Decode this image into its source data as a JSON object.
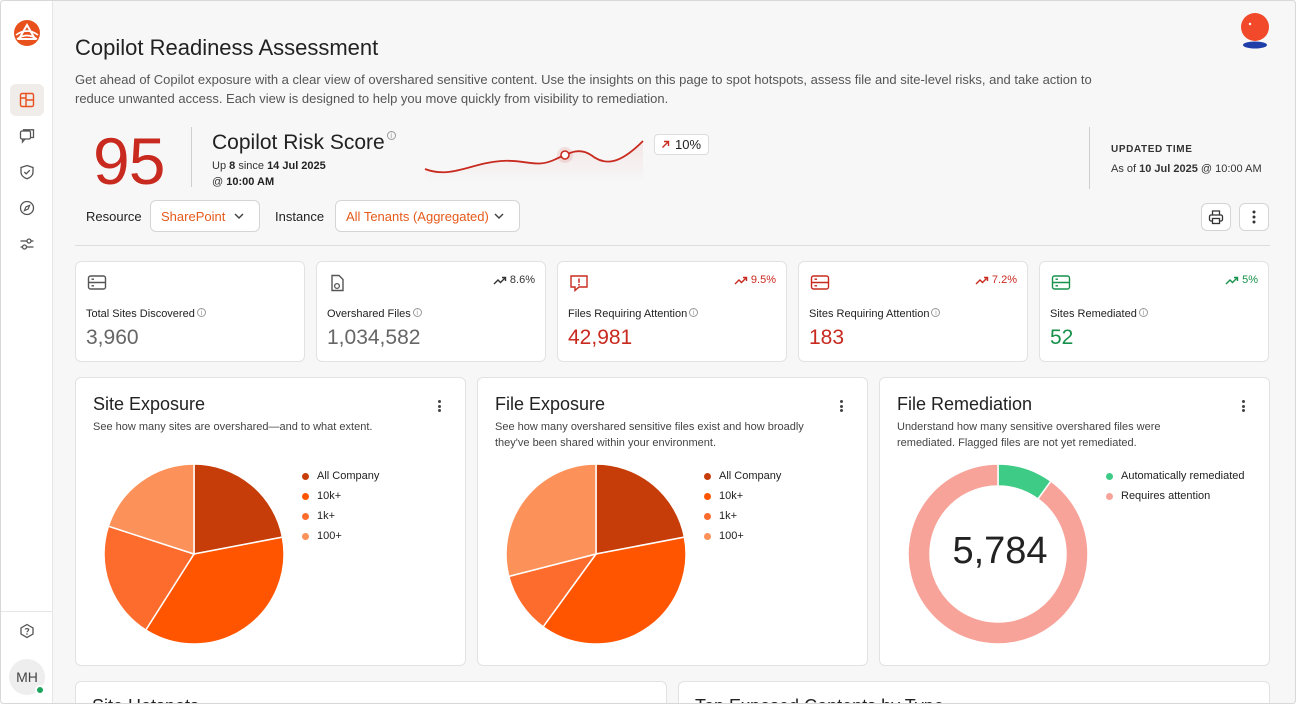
{
  "page": {
    "title": "Copilot Readiness Assessment",
    "description": "Get ahead of Copilot exposure with a clear view of overshared sensitive content. Use the insights on this page to spot hotspots, assess file and site-level risks, and take action to reduce unwanted access. Each view is designed to help you move quickly from visibility to remediation."
  },
  "sidebar": {
    "items": [
      "dashboard-icon",
      "chat-icon",
      "shield-check-icon",
      "compass-icon",
      "sliders-icon"
    ],
    "help": "help-icon",
    "user_initials": "MH"
  },
  "risk": {
    "score": "95",
    "title": "Copilot Risk Score",
    "up_label": "Up",
    "up_value": "8",
    "since_label": "since",
    "since_date": "14 Jul 2025",
    "at_label": "@",
    "at_time": "10:00 AM",
    "trend": "10%",
    "trend_color": "#c82a1f"
  },
  "updated": {
    "label": "UPDATED TIME",
    "as_of": "As of",
    "date": "10 Jul 2025",
    "at": "@ 10:00 AM"
  },
  "filters": {
    "resource_label": "Resource",
    "resource_value": "SharePoint",
    "instance_label": "Instance",
    "instance_value": "All Tenants (Aggregated)"
  },
  "stats": [
    {
      "label": "Total Sites Discovered",
      "value": "3,960",
      "trend": "",
      "icon": "server-icon",
      "color": "#666666"
    },
    {
      "label": "Overshared Files",
      "value": "1,034,582",
      "trend": "8.6%",
      "icon": "file-share-icon",
      "color": "#666666"
    },
    {
      "label": "Files Requiring Attention",
      "value": "42,981",
      "trend": "9.5%",
      "icon": "alert-icon",
      "color": "#c82a1f"
    },
    {
      "label": "Sites Requiring Attention",
      "value": "183",
      "trend": "7.2%",
      "icon": "server-icon",
      "color": "#c82a1f"
    },
    {
      "label": "Sites Remediated",
      "value": "52",
      "trend": "5%",
      "icon": "server-icon",
      "color": "#17914b"
    }
  ],
  "panels": {
    "site_exposure": {
      "title": "Site Exposure",
      "desc": "See how many sites are overshared—and to what extent.",
      "legend": [
        "All Company",
        "10k+",
        "1k+",
        "100+"
      ]
    },
    "file_exposure": {
      "title": "File Exposure",
      "desc": "See how many overshared sensitive files exist and how broadly they've been shared within your environment.",
      "legend": [
        "All Company",
        "10k+",
        "1k+",
        "100+"
      ]
    },
    "file_remediation": {
      "title": "File Remediation",
      "desc": "Understand how many sensitive overshared files were remediated. Flagged files are not yet remediated.",
      "legend": [
        "Automatically remediated",
        "Requires attention"
      ],
      "total": "5,784"
    }
  },
  "colors": {
    "all_company": "#c63d09",
    "tenk": "#ff5500",
    "onek": "#fd6c2d",
    "hundred": "#fc9159",
    "remediated": "#3ecb86",
    "attention": "#f7a39a"
  },
  "chart_data": [
    {
      "type": "pie",
      "title": "Site Exposure",
      "categories": [
        "All Company",
        "10k+",
        "1k+",
        "100+"
      ],
      "values": [
        22,
        37,
        21,
        20
      ]
    },
    {
      "type": "pie",
      "title": "File Exposure",
      "categories": [
        "All Company",
        "10k+",
        "1k+",
        "100+"
      ],
      "values": [
        22,
        38,
        11,
        29
      ]
    },
    {
      "type": "pie",
      "title": "File Remediation",
      "categories": [
        "Automatically remediated",
        "Requires attention"
      ],
      "values": [
        10,
        90
      ]
    }
  ],
  "bottom": {
    "left_title": "Site Hotspots",
    "right_title": "Top Exposed Contents by Type"
  }
}
